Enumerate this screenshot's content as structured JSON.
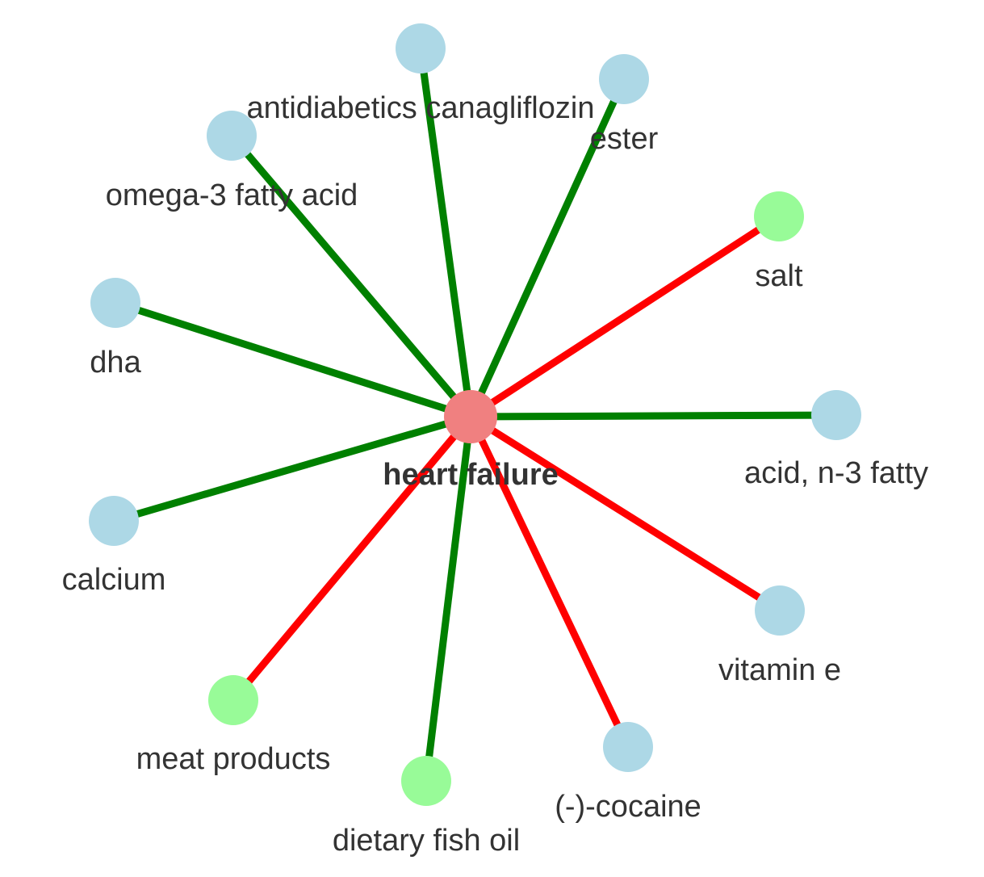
{
  "colors": {
    "edge_positive": "#008000",
    "edge_negative": "#ff0000",
    "center_node": "#f08080",
    "node_blue": "#add8e6",
    "node_green": "#98fb98"
  },
  "center": {
    "label": "heart failure"
  },
  "nodes": [
    {
      "label": "antidiabetics canagliflozin",
      "color": "node_blue",
      "edge": "edge_positive"
    },
    {
      "label": "ester",
      "color": "node_blue",
      "edge": "edge_positive"
    },
    {
      "label": "omega-3 fatty acid",
      "color": "node_blue",
      "edge": "edge_positive"
    },
    {
      "label": "salt",
      "color": "node_green",
      "edge": "edge_negative"
    },
    {
      "label": "dha",
      "color": "node_blue",
      "edge": "edge_positive"
    },
    {
      "label": "acid, n-3 fatty",
      "color": "node_blue",
      "edge": "edge_positive"
    },
    {
      "label": "calcium",
      "color": "node_blue",
      "edge": "edge_positive"
    },
    {
      "label": "vitamin e",
      "color": "node_blue",
      "edge": "edge_negative"
    },
    {
      "label": "meat products",
      "color": "node_green",
      "edge": "edge_negative"
    },
    {
      "label": "(-)-cocaine",
      "color": "node_blue",
      "edge": "edge_negative"
    },
    {
      "label": "dietary fish oil",
      "color": "node_green",
      "edge": "edge_positive"
    }
  ]
}
